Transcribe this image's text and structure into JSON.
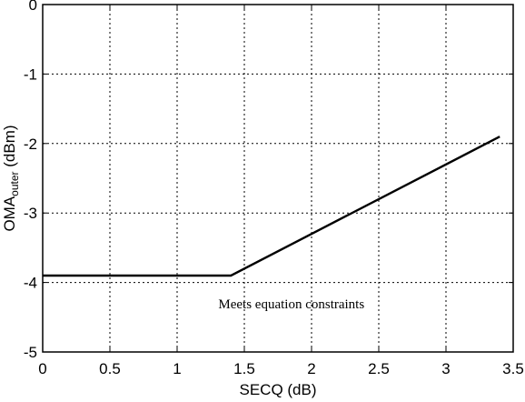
{
  "chart_data": {
    "type": "line",
    "xlabel": "SECQ (dB)",
    "ylabel": {
      "main": "OMA",
      "subscript": "outer",
      "unit": "(dBm)"
    },
    "xlim": [
      0,
      3.5
    ],
    "ylim": [
      -5,
      0
    ],
    "xticks": [
      "0",
      "0.5",
      "1",
      "1.5",
      "2",
      "2.5",
      "3",
      "3.5"
    ],
    "yticks": [
      "0",
      "-1",
      "-2",
      "-3",
      "-4",
      "-5"
    ],
    "grid": true,
    "series": [
      {
        "x": [
          0,
          1.4,
          3.4
        ],
        "y": [
          -3.9,
          -3.9,
          -1.9
        ]
      }
    ],
    "annotations": [
      {
        "text": "Meets equation constraints",
        "x": 1.85,
        "y": -4.37
      }
    ]
  }
}
